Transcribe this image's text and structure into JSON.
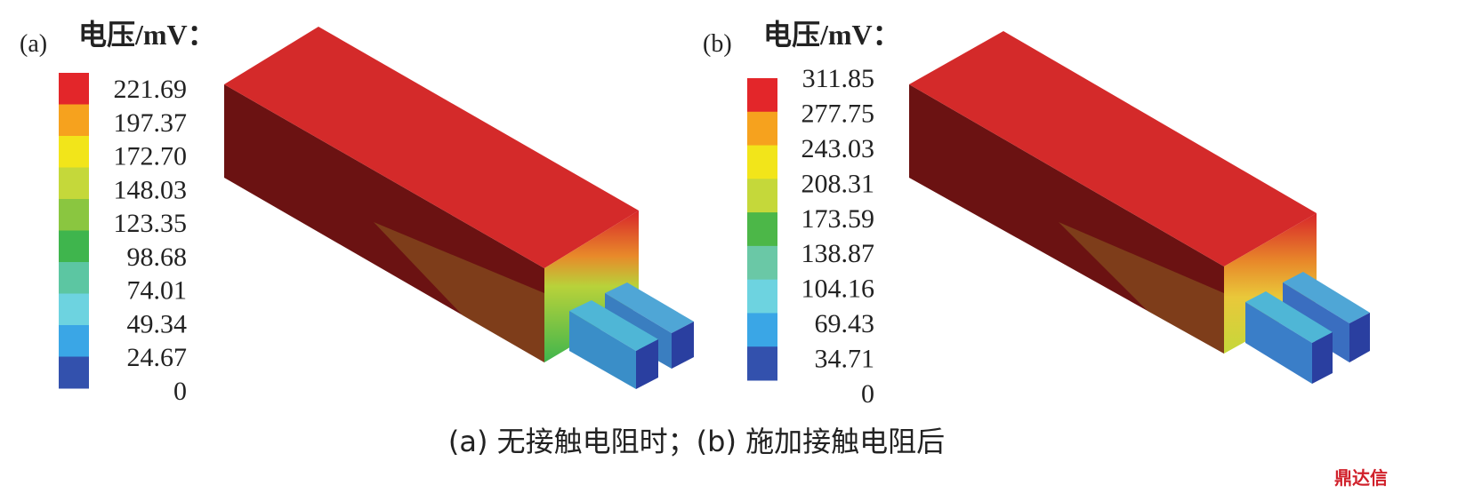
{
  "panels": [
    {
      "label": "(a)",
      "legend_title": "电压/mV：",
      "ticks": [
        "221.69",
        "197.37",
        "172.70",
        "148.03",
        "123.35",
        "98.68",
        "74.01",
        "49.34",
        "24.67",
        "0"
      ],
      "colors": [
        "#e3262a",
        "#f6a21e",
        "#f2e51a",
        "#c5d83a",
        "#8ac640",
        "#3fb54d",
        "#5cc6a2",
        "#6dd3e0",
        "#3aa6e6",
        "#3351ad"
      ]
    },
    {
      "label": "(b)",
      "legend_title": "电压/mV：",
      "ticks": [
        "311.85",
        "277.75",
        "243.03",
        "208.31",
        "173.59",
        "138.87",
        "104.16",
        "69.43",
        "34.71",
        "0"
      ],
      "colors": [
        "#e3262a",
        "#f6a21e",
        "#f2e51a",
        "#c5d83a",
        "#4cb748",
        "#6ac8a6",
        "#6dd3e0",
        "#3aa6e6",
        "#3351ad"
      ]
    }
  ],
  "caption": "(a) 无接触电阻时；(b) 施加接触电阻后",
  "watermark": "鼎达信"
}
